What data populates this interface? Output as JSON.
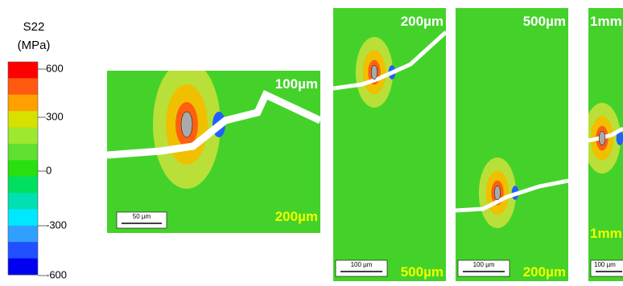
{
  "legend": {
    "title": "S22",
    "unit": "(MPa)",
    "ticks": [
      "600",
      "300",
      "0",
      "-300",
      "-600"
    ]
  },
  "panels": [
    {
      "top_label": "100µm",
      "bottom_label": "200µm",
      "scale_bar": "50 µm"
    },
    {
      "top_label": "200µm",
      "bottom_label": "500µm",
      "scale_bar": "100 µm"
    },
    {
      "top_label": "500µm",
      "bottom_label": "200µm",
      "scale_bar": "100 µm"
    },
    {
      "top_label": "1mm",
      "bottom_label": "1mm",
      "scale_bar": "100 µm"
    }
  ]
}
